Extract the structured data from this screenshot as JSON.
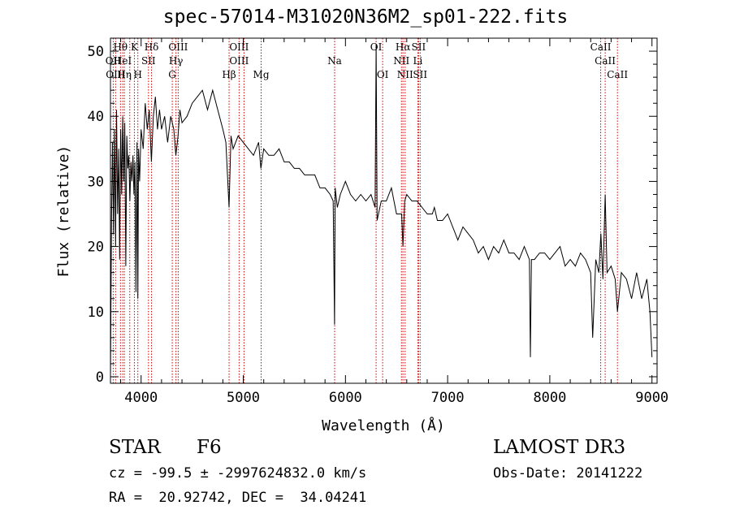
{
  "chart_data": {
    "type": "line",
    "title": "spec-57014-M31020N36M2_sp01-222.fits",
    "xlabel": "Wavelength (Å)",
    "ylabel": "Flux (relative)",
    "xlim": [
      3700,
      9050
    ],
    "ylim": [
      -1,
      52
    ],
    "xticks": [
      4000,
      5000,
      6000,
      7000,
      8000,
      9000
    ],
    "yticks": [
      0,
      10,
      20,
      30,
      40,
      50
    ],
    "grid": false,
    "series": [
      {
        "values_x": [
          3700,
          3710,
          3720,
          3730,
          3740,
          3750,
          3760,
          3770,
          3780,
          3790,
          3800,
          3810,
          3820,
          3830,
          3840,
          3850,
          3860,
          3870,
          3880,
          3890,
          3900,
          3910,
          3920,
          3930,
          3940,
          3950,
          3960,
          3968,
          3975,
          3985,
          4000,
          4020,
          4040,
          4060,
          4080,
          4101,
          4120,
          4140,
          4160,
          4180,
          4200,
          4230,
          4260,
          4290,
          4320,
          4340,
          4361,
          4380,
          4400,
          4450,
          4500,
          4550,
          4600,
          4650,
          4700,
          4750,
          4800,
          4830,
          4861,
          4880,
          4900,
          4950,
          5000,
          5050,
          5100,
          5150,
          5172,
          5200,
          5250,
          5300,
          5350,
          5400,
          5450,
          5500,
          5550,
          5600,
          5650,
          5700,
          5750,
          5800,
          5850,
          5880,
          5893,
          5900,
          5920,
          5950,
          6000,
          6050,
          6100,
          6150,
          6200,
          6250,
          6290,
          6300,
          6310,
          6350,
          6400,
          6450,
          6500,
          6550,
          6563,
          6580,
          6600,
          6650,
          6700,
          6750,
          6800,
          6850,
          6870,
          6900,
          6950,
          7000,
          7050,
          7100,
          7150,
          7200,
          7250,
          7300,
          7350,
          7400,
          7450,
          7500,
          7550,
          7600,
          7650,
          7700,
          7750,
          7800,
          7810,
          7820,
          7850,
          7900,
          7950,
          8000,
          8050,
          8100,
          8150,
          8200,
          8250,
          8300,
          8350,
          8400,
          8420,
          8450,
          8480,
          8500,
          8520,
          8542,
          8560,
          8600,
          8640,
          8662,
          8700,
          8750,
          8800,
          8850,
          8900,
          8950,
          8980,
          9000
        ],
        "values_y": [
          0,
          24,
          36,
          22,
          38,
          20,
          41,
          25,
          35,
          18,
          38,
          28,
          40,
          30,
          39,
          17,
          37,
          32,
          34,
          27,
          33,
          30,
          34,
          28,
          33,
          13,
          36,
          12,
          35,
          30,
          38,
          35,
          42,
          38,
          41,
          33,
          40,
          43,
          38,
          41,
          38,
          40,
          36,
          40,
          38,
          34,
          37,
          41,
          39,
          40,
          42,
          43,
          44,
          41,
          44,
          41,
          38,
          36,
          26,
          37,
          35,
          37,
          36,
          35,
          34,
          36,
          32,
          35,
          34,
          34,
          35,
          33,
          33,
          32,
          32,
          31,
          31,
          31,
          29,
          29,
          28,
          27,
          8,
          29,
          26,
          28,
          30,
          28,
          27,
          28,
          27,
          28,
          26,
          51,
          24,
          27,
          27,
          29,
          25,
          25,
          20,
          27,
          28,
          27,
          27,
          26,
          25,
          25,
          26,
          24,
          24,
          25,
          23,
          21,
          23,
          22,
          21,
          19,
          20,
          18,
          20,
          19,
          21,
          19,
          19,
          18,
          20,
          18,
          3,
          18,
          18,
          19,
          19,
          18,
          19,
          20,
          17,
          18,
          17,
          19,
          18,
          16,
          6,
          18,
          16,
          22,
          15,
          28,
          16,
          17,
          15,
          10,
          16,
          15,
          12,
          16,
          12,
          15,
          10,
          3
        ]
      }
    ],
    "line_labels": [
      {
        "name": "Hθ",
        "x": 3798,
        "row": 0
      },
      {
        "name": "OII",
        "x": 3727,
        "row": 1
      },
      {
        "name": "OIII",
        "x": 3750,
        "row": 2
      },
      {
        "name": "K",
        "x": 3934,
        "row": 0
      },
      {
        "name": "HeI",
        "x": 3820,
        "row": 1
      },
      {
        "name": "Hη",
        "x": 3836,
        "row": 2
      },
      {
        "name": "Hδ",
        "x": 4102,
        "row": 0
      },
      {
        "name": "SII",
        "x": 4072,
        "row": 1
      },
      {
        "name": "H",
        "x": 3968,
        "row": 2
      },
      {
        "name": "OIII",
        "x": 4363,
        "row": 0
      },
      {
        "name": "Hγ",
        "x": 4341,
        "row": 1
      },
      {
        "name": "G",
        "x": 4305,
        "row": 2
      },
      {
        "name": "OIII",
        "x": 4959,
        "row": 0
      },
      {
        "name": "OIII",
        "x": 4959,
        "row": 1
      },
      {
        "name": "Hβ",
        "x": 4861,
        "row": 2
      },
      {
        "name": "Mg",
        "x": 5175,
        "row": 2
      },
      {
        "name": "Na",
        "x": 5894,
        "row": 1
      },
      {
        "name": "OI",
        "x": 6300,
        "row": 0
      },
      {
        "name": "OI",
        "x": 6364,
        "row": 2
      },
      {
        "name": "Hα",
        "x": 6563,
        "row": 0
      },
      {
        "name": "SII",
        "x": 6716,
        "row": 0
      },
      {
        "name": "NII",
        "x": 6548,
        "row": 1
      },
      {
        "name": "Li",
        "x": 6708,
        "row": 1
      },
      {
        "name": "NII",
        "x": 6584,
        "row": 2
      },
      {
        "name": "SII",
        "x": 6731,
        "row": 2
      },
      {
        "name": "CaII",
        "x": 8498,
        "row": 0
      },
      {
        "name": "CaII",
        "x": 8542,
        "row": 1
      },
      {
        "name": "CaII",
        "x": 8662,
        "row": 2
      }
    ],
    "line_positions": [
      3727,
      3750,
      3798,
      3820,
      3836,
      3889,
      3934,
      3968,
      4072,
      4102,
      4305,
      4341,
      4363,
      4861,
      4959,
      5007,
      5175,
      5894,
      6300,
      6364,
      6548,
      6563,
      6584,
      6708,
      6716,
      6731,
      8498,
      8542,
      8662
    ],
    "line_color": "#cc0000"
  },
  "info": {
    "class": "STAR",
    "subclass": "F6",
    "survey": "LAMOST DR3",
    "cz": "cz = -99.5 ± -2997624832.0 km/s",
    "obs_date": "Obs-Date: 20141222",
    "radec": "RA =  20.92742, DEC =  34.04241"
  }
}
